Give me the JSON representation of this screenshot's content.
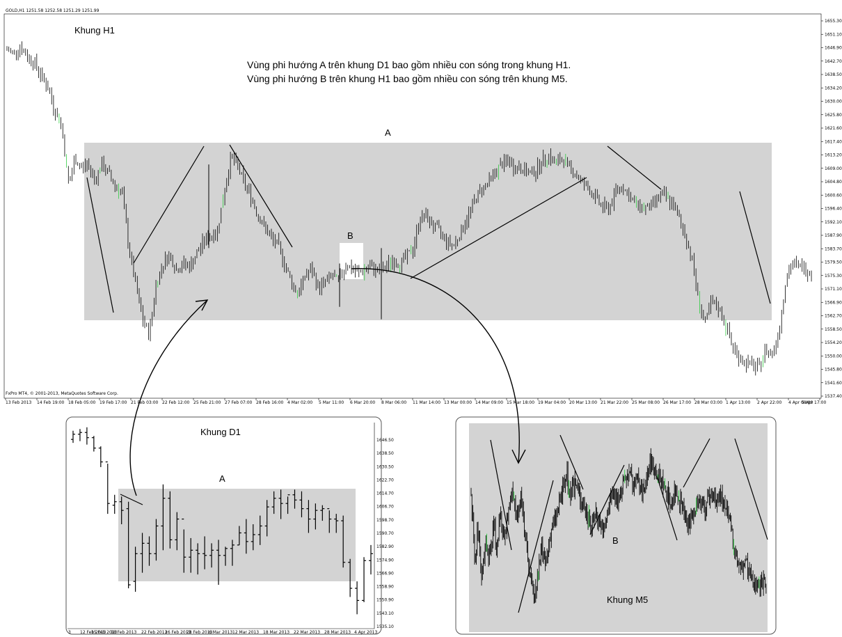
{
  "header": {
    "symbol_info": "GOLD,H1  1251.58 1252.58 1251.29 1251.99"
  },
  "copyright": "FxPro MT4, © 2001-2013, MetaQuotes Software Corp.",
  "annotations": {
    "main_label": "Khung H1",
    "note_line1": "Vùng phi hướng A trên khung D1 bao gồm nhiều con sóng trong khung H1.",
    "note_line2": "Vùng phi hướng B trên khung H1 bao gồm nhiều con sóng trên khung M5.",
    "zone_a": "A",
    "zone_b": "B",
    "d1_label": "Khung D1",
    "d1_zone_a": "A",
    "m5_label": "Khung M5",
    "m5_zone_b": "B"
  },
  "colors": {
    "zone_fill": "#d3d3d3",
    "bar": "#000000",
    "bull_bar": "#2ecc40",
    "zone_b_fill": "#ffffff"
  },
  "chart_data": [
    {
      "type": "bar",
      "name": "GOLD H1 main chart",
      "ylim": [
        1537.4,
        1659.5
      ],
      "y_ticks": [
        "1655.30",
        "1651.10",
        "1646.90",
        "1642.70",
        "1638.50",
        "1634.20",
        "1630.00",
        "1625.80",
        "1621.60",
        "1617.40",
        "1613.20",
        "1609.00",
        "1604.80",
        "1600.60",
        "1596.40",
        "1592.10",
        "1587.90",
        "1583.70",
        "1579.50",
        "1575.30",
        "1571.10",
        "1566.90",
        "1562.70",
        "1558.50",
        "1554.20",
        "1550.00",
        "1545.80",
        "1541.60",
        "1537.40"
      ],
      "x_ticks": [
        "13 Feb 2013",
        "14 Feb 19:00",
        "18 Feb 05:00",
        "19 Feb 17:00",
        "21 Feb 03:00",
        "22 Feb 12:00",
        "25 Feb 21:00",
        "27 Feb 07:00",
        "28 Feb 16:00",
        "4 Mar 02:00",
        "5 Mar 11:00",
        "6 Mar 20:00",
        "8 Mar 06:00",
        "11 Mar 14:00",
        "13 Mar 00:00",
        "14 Mar 09:00",
        "15 Mar 18:00",
        "19 Mar 04:00",
        "20 Mar 13:00",
        "21 Mar 22:00",
        "25 Mar 08:00",
        "26 Mar 17:00",
        "28 Mar 03:00",
        "1 Apr 13:00",
        "2 Apr 22:00",
        "4 Apr 08:00",
        "5 Apr 17:00"
      ],
      "price_path": [
        [
          0,
          1649
        ],
        [
          2,
          1648
        ],
        [
          4,
          1650
        ],
        [
          6,
          1647
        ],
        [
          8,
          1645
        ],
        [
          10,
          1641
        ],
        [
          12,
          1637
        ],
        [
          14,
          1630
        ],
        [
          16,
          1625
        ],
        [
          17,
          1617
        ],
        [
          18,
          1606
        ],
        [
          19,
          1608
        ],
        [
          20,
          1614
        ],
        [
          22,
          1611
        ],
        [
          24,
          1612
        ],
        [
          26,
          1607
        ],
        [
          28,
          1612
        ],
        [
          30,
          1609
        ],
        [
          32,
          1605
        ],
        [
          34,
          1603
        ],
        [
          36,
          1585
        ],
        [
          38,
          1573
        ],
        [
          40,
          1562
        ],
        [
          42,
          1557
        ],
        [
          44,
          1573
        ],
        [
          46,
          1580
        ],
        [
          48,
          1583
        ],
        [
          50,
          1578
        ],
        [
          52,
          1580
        ],
        [
          54,
          1579
        ],
        [
          56,
          1583
        ],
        [
          58,
          1587
        ],
        [
          60,
          1589
        ],
        [
          62,
          1590
        ],
        [
          64,
          1602
        ],
        [
          66,
          1614
        ],
        [
          68,
          1612
        ],
        [
          70,
          1606
        ],
        [
          72,
          1602
        ],
        [
          74,
          1596
        ],
        [
          76,
          1592
        ],
        [
          78,
          1588
        ],
        [
          80,
          1586
        ],
        [
          82,
          1580
        ],
        [
          84,
          1574
        ],
        [
          86,
          1570
        ],
        [
          88,
          1576
        ],
        [
          90,
          1578
        ],
        [
          92,
          1572
        ],
        [
          94,
          1574
        ],
        [
          96,
          1576
        ],
        [
          98,
          1574
        ],
        [
          100,
          1580
        ],
        [
          102,
          1578
        ],
        [
          104,
          1577
        ],
        [
          106,
          1578
        ],
        [
          108,
          1579
        ],
        [
          110,
          1577
        ],
        [
          112,
          1579
        ],
        [
          114,
          1581
        ],
        [
          116,
          1580
        ],
        [
          118,
          1582
        ],
        [
          120,
          1585
        ],
        [
          122,
          1595
        ],
        [
          124,
          1595
        ],
        [
          126,
          1592
        ],
        [
          128,
          1590
        ],
        [
          130,
          1587
        ],
        [
          132,
          1586
        ],
        [
          134,
          1590
        ],
        [
          136,
          1595
        ],
        [
          138,
          1600
        ],
        [
          140,
          1604
        ],
        [
          142,
          1606
        ],
        [
          144,
          1609
        ],
        [
          146,
          1612
        ],
        [
          148,
          1613
        ],
        [
          150,
          1611
        ],
        [
          152,
          1611
        ],
        [
          154,
          1609
        ],
        [
          156,
          1610
        ],
        [
          158,
          1613
        ],
        [
          160,
          1615
        ],
        [
          162,
          1612
        ],
        [
          164,
          1614
        ],
        [
          166,
          1611
        ],
        [
          168,
          1609
        ],
        [
          170,
          1606
        ],
        [
          172,
          1604
        ],
        [
          174,
          1601
        ],
        [
          176,
          1598
        ],
        [
          178,
          1598
        ],
        [
          180,
          1604
        ],
        [
          182,
          1605
        ],
        [
          184,
          1601
        ],
        [
          186,
          1599
        ],
        [
          188,
          1598
        ],
        [
          190,
          1598
        ],
        [
          192,
          1601
        ],
        [
          194,
          1602
        ],
        [
          196,
          1600
        ],
        [
          198,
          1596
        ],
        [
          200,
          1590
        ],
        [
          202,
          1583
        ],
        [
          204,
          1570
        ],
        [
          206,
          1560
        ],
        [
          208,
          1567
        ],
        [
          210,
          1566
        ],
        [
          212,
          1561
        ],
        [
          214,
          1554
        ],
        [
          216,
          1550
        ],
        [
          218,
          1548
        ],
        [
          220,
          1547
        ],
        [
          222,
          1546
        ],
        [
          224,
          1552
        ],
        [
          226,
          1551
        ],
        [
          228,
          1558
        ],
        [
          230,
          1575
        ],
        [
          232,
          1580
        ],
        [
          234,
          1579
        ],
        [
          236,
          1578
        ],
        [
          238,
          1577
        ]
      ],
      "zones": [
        {
          "label": "A",
          "price_from": 1562.7,
          "price_to": 1617.4
        },
        {
          "label": "B",
          "price_from": 1574.3,
          "price_to": 1585.2
        }
      ]
    },
    {
      "type": "bar",
      "name": "Khung D1",
      "ylim": [
        1535.1,
        1650.5
      ],
      "y_ticks": [
        "1646.50",
        "1638.50",
        "1630.50",
        "1622.70",
        "1614.70",
        "1606.70",
        "1598.70",
        "1590.70",
        "1582.90",
        "1574.90",
        "1566.90",
        "1558.90",
        "1550.90",
        "1543.10",
        "1535.10"
      ],
      "x_ticks": [
        "3",
        "12 Feb 2013",
        "15 Feb 2013",
        "18 Feb 2013",
        "22 Feb 2013",
        "26 Feb 2013",
        "28 Feb 2013",
        "6 Mar 2013",
        "12 Mar 2013",
        "18 Mar 2013",
        "22 Mar 2013",
        "28 Mar 2013",
        "4 Apr 2013"
      ],
      "bars": [
        [
          1649,
          1642,
          1644,
          1647
        ],
        [
          1650,
          1643,
          1647,
          1648
        ],
        [
          1651,
          1641,
          1648,
          1645
        ],
        [
          1646,
          1637,
          1645,
          1639
        ],
        [
          1640,
          1628,
          1639,
          1631
        ],
        [
          1630,
          1601,
          1631,
          1607
        ],
        [
          1612,
          1601,
          1606,
          1608
        ],
        [
          1611,
          1595,
          1608,
          1603
        ],
        [
          1608,
          1558,
          1604,
          1560
        ],
        [
          1582,
          1556,
          1562,
          1578
        ],
        [
          1590,
          1567,
          1578,
          1584
        ],
        [
          1588,
          1571,
          1584,
          1578
        ],
        [
          1598,
          1574,
          1578,
          1594
        ],
        [
          1618,
          1580,
          1594,
          1610
        ],
        [
          1614,
          1581,
          1610,
          1586
        ],
        [
          1602,
          1580,
          1586,
          1598
        ],
        [
          1592,
          1567,
          1598,
          1576
        ],
        [
          1587,
          1567,
          1576,
          1580
        ],
        [
          1584,
          1566,
          1580,
          1578
        ],
        [
          1588,
          1569,
          1578,
          1577
        ],
        [
          1584,
          1570,
          1577,
          1580
        ],
        [
          1586,
          1560,
          1580,
          1577
        ],
        [
          1582,
          1571,
          1577,
          1581
        ],
        [
          1586,
          1571,
          1581,
          1583
        ],
        [
          1594,
          1583,
          1583,
          1590
        ],
        [
          1598,
          1578,
          1590,
          1585
        ],
        [
          1595,
          1580,
          1585,
          1589
        ],
        [
          1600,
          1583,
          1589,
          1594
        ],
        [
          1609,
          1588,
          1594,
          1605
        ],
        [
          1614,
          1601,
          1605,
          1610
        ],
        [
          1615,
          1598,
          1610,
          1607
        ],
        [
          1611,
          1601,
          1607,
          1612
        ],
        [
          1615,
          1604,
          1612,
          1609
        ],
        [
          1614,
          1599,
          1609,
          1604
        ],
        [
          1609,
          1590,
          1604,
          1598
        ],
        [
          1607,
          1592,
          1598,
          1603
        ],
        [
          1606,
          1597,
          1603,
          1604
        ],
        [
          1603,
          1590,
          1604,
          1598
        ],
        [
          1601,
          1590,
          1598,
          1597
        ],
        [
          1600,
          1570,
          1597,
          1573
        ],
        [
          1575,
          1553,
          1573,
          1558
        ],
        [
          1562,
          1543,
          1558,
          1551
        ],
        [
          1576,
          1550,
          1551,
          1574
        ],
        [
          1583,
          1566,
          1574,
          1578
        ]
      ],
      "zones": [
        {
          "label": "A",
          "price_from": 1564.5,
          "price_to": 1617.4
        }
      ]
    },
    {
      "type": "bar",
      "name": "Khung M5",
      "price_path": [
        [
          0,
          70
        ],
        [
          2,
          30
        ],
        [
          3,
          55
        ],
        [
          5,
          20
        ],
        [
          7,
          45
        ],
        [
          9,
          35
        ],
        [
          11,
          55
        ],
        [
          12,
          38
        ],
        [
          14,
          58
        ],
        [
          16,
          42
        ],
        [
          18,
          62
        ],
        [
          20,
          75
        ],
        [
          22,
          55
        ],
        [
          24,
          68
        ],
        [
          26,
          45
        ],
        [
          28,
          30
        ],
        [
          30,
          12
        ],
        [
          32,
          22
        ],
        [
          34,
          40
        ],
        [
          36,
          30
        ],
        [
          38,
          48
        ],
        [
          40,
          55
        ],
        [
          42,
          62
        ],
        [
          44,
          72
        ],
        [
          46,
          80
        ],
        [
          48,
          68
        ],
        [
          50,
          76
        ],
        [
          52,
          70
        ],
        [
          54,
          64
        ],
        [
          56,
          58
        ],
        [
          58,
          52
        ],
        [
          60,
          60
        ],
        [
          62,
          55
        ],
        [
          64,
          48
        ],
        [
          66,
          62
        ],
        [
          68,
          72
        ],
        [
          70,
          66
        ],
        [
          72,
          70
        ],
        [
          74,
          78
        ],
        [
          76,
          82
        ],
        [
          78,
          74
        ],
        [
          80,
          78
        ],
        [
          82,
          70
        ],
        [
          84,
          76
        ],
        [
          86,
          88
        ],
        [
          88,
          84
        ],
        [
          90,
          80
        ],
        [
          92,
          76
        ],
        [
          94,
          70
        ],
        [
          96,
          64
        ],
        [
          98,
          72
        ],
        [
          100,
          68
        ],
        [
          102,
          60
        ],
        [
          104,
          52
        ],
        [
          106,
          58
        ],
        [
          108,
          62
        ],
        [
          110,
          66
        ],
        [
          112,
          60
        ],
        [
          114,
          68
        ],
        [
          116,
          70
        ],
        [
          118,
          64
        ],
        [
          120,
          70
        ],
        [
          122,
          62
        ],
        [
          124,
          56
        ],
        [
          126,
          44
        ],
        [
          128,
          34
        ],
        [
          130,
          28
        ],
        [
          132,
          34
        ],
        [
          134,
          26
        ],
        [
          136,
          20
        ],
        [
          138,
          24
        ],
        [
          140,
          18
        ],
        [
          142,
          22
        ]
      ],
      "zones": [
        {
          "label": "B",
          "price_from": 0,
          "price_to": 100
        }
      ]
    }
  ]
}
